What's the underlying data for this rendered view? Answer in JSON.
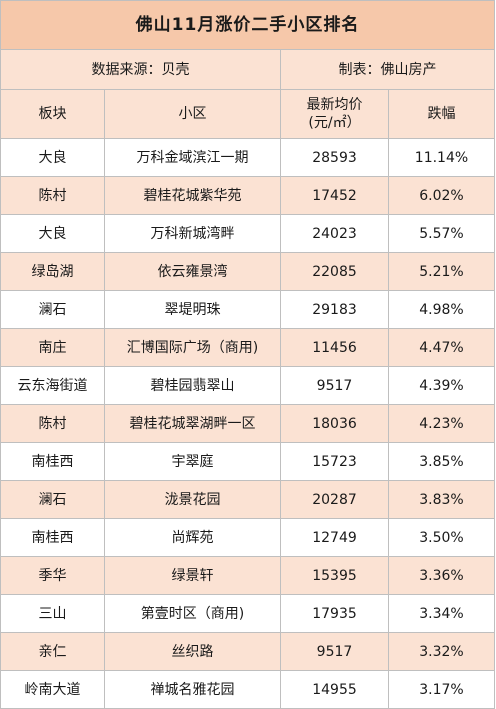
{
  "title": "佛山11月涨价二手小区排名",
  "source": {
    "data_source": "数据来源：贝壳",
    "producer": "制表：佛山房产"
  },
  "headers": {
    "district": "板块",
    "community": "小区",
    "price_line1": "最新均价",
    "price_line2": "(元/㎡）",
    "change": "跌幅"
  },
  "rows": [
    {
      "district": "大良",
      "community": "万科金域滨江一期",
      "price": "28593",
      "change": "11.14%"
    },
    {
      "district": "陈村",
      "community": "碧桂花城紫华苑",
      "price": "17452",
      "change": "6.02%"
    },
    {
      "district": "大良",
      "community": "万科新城湾畔",
      "price": "24023",
      "change": "5.57%"
    },
    {
      "district": "绿岛湖",
      "community": "依云雍景湾",
      "price": "22085",
      "change": "5.21%"
    },
    {
      "district": "澜石",
      "community": "翠堤明珠",
      "price": "29183",
      "change": "4.98%"
    },
    {
      "district": "南庄",
      "community": "汇博国际广场（商用)",
      "price": "11456",
      "change": "4.47%"
    },
    {
      "district": "云东海街道",
      "community": "碧桂园翡翠山",
      "price": "9517",
      "change": "4.39%"
    },
    {
      "district": "陈村",
      "community": "碧桂花城翠湖畔一区",
      "price": "18036",
      "change": "4.23%"
    },
    {
      "district": "南桂西",
      "community": "宇翠庭",
      "price": "15723",
      "change": "3.85%"
    },
    {
      "district": "澜石",
      "community": "泷景花园",
      "price": "20287",
      "change": "3.83%"
    },
    {
      "district": "南桂西",
      "community": "尚辉苑",
      "price": "12749",
      "change": "3.50%"
    },
    {
      "district": "季华",
      "community": "绿景轩",
      "price": "15395",
      "change": "3.36%"
    },
    {
      "district": "三山",
      "community": "第壹时区（商用)",
      "price": "17935",
      "change": "3.34%"
    },
    {
      "district": "亲仁",
      "community": "丝织路",
      "price": "9517",
      "change": "3.32%"
    },
    {
      "district": "岭南大道",
      "community": "禅城名雅花园",
      "price": "14955",
      "change": "3.17%"
    }
  ]
}
